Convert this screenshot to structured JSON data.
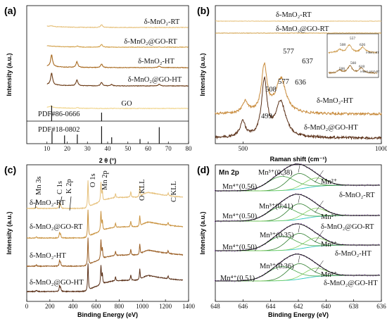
{
  "chart_data": [
    {
      "panel": "(a)",
      "type": "line",
      "xlabel": "2 θ (°)",
      "ylabel": "Intensity (a.u.)",
      "xlim": [
        0,
        80
      ],
      "xticks": [
        "10",
        "20",
        "30",
        "40",
        "50",
        "60",
        "70",
        "80"
      ],
      "series": [
        {
          "name": "δ-MnO₂-RT",
          "color": "#e6c07a",
          "peaks": [
            [
              37,
              4
            ],
            [
              12.3,
              1
            ]
          ]
        },
        {
          "name": "δ-MnO₂@GO-RT",
          "color": "#d3a24d",
          "peaks": [
            [
              37,
              4
            ],
            [
              25,
              1.5
            ]
          ]
        },
        {
          "name": "δ-MnO₂-HT",
          "color": "#a8691e",
          "peaks": [
            [
              12.3,
              17
            ],
            [
              24.8,
              8
            ],
            [
              37,
              5
            ],
            [
              65.5,
              2.5
            ]
          ]
        },
        {
          "name": "δ-MnO₂@GO-HT",
          "color": "#6b3a14",
          "peaks": [
            [
              12.3,
              17
            ],
            [
              24.8,
              8
            ],
            [
              37,
              5
            ],
            [
              42,
              2
            ],
            [
              65.5,
              2.5
            ]
          ]
        },
        {
          "name": "GO",
          "color": "#f0d48a",
          "peaks": [
            [
              12,
              2
            ],
            [
              25,
              1
            ]
          ]
        }
      ],
      "reference_patterns": [
        {
          "name": "PDF#86-0666",
          "lines": [
            [
              12.3,
              1.0
            ],
            [
              37.0,
              0.55
            ]
          ]
        },
        {
          "name": "PDF#18-0802",
          "lines": [
            [
              12.5,
              0.7
            ],
            [
              18.7,
              0.45
            ],
            [
              25.0,
              0.5
            ],
            [
              37.0,
              0.95
            ],
            [
              42.0,
              0.35
            ],
            [
              56.0,
              0.25
            ],
            [
              65.5,
              0.9
            ]
          ]
        }
      ]
    },
    {
      "panel": "(b)",
      "type": "line",
      "xlabel": "Raman shift (cm⁻¹)",
      "ylabel": "Intensity (a.u.)",
      "xlim": [
        400,
        1000
      ],
      "xticks": [
        "500",
        "1000"
      ],
      "series": [
        {
          "name": "δ-MnO₂-RT",
          "color": "#e6c07a",
          "peaks": []
        },
        {
          "name": "δ-MnO₂@GO-RT",
          "color": "#d3a24d",
          "peaks": []
        },
        {
          "name": "δ-MnO₂-HT",
          "color": "#c88a3a",
          "peaks": [
            [
              508,
              5
            ],
            [
              577,
              20
            ],
            [
              637,
              15
            ]
          ]
        },
        {
          "name": "δ-MnO₂@GO-HT",
          "color": "#5a3018",
          "peaks": [
            [
              499,
              6
            ],
            [
              577,
              22
            ],
            [
              636,
              14
            ]
          ]
        }
      ],
      "peak_labels": [
        "508",
        "577",
        "637",
        "577",
        "636",
        "499"
      ],
      "inset": {
        "series": [
          {
            "name": "δ-MnO₂-RT",
            "peak_labels": [
              "557",
              "508",
              "626"
            ]
          },
          {
            "name": "δ-MnO₂@GO-RT",
            "peak_labels": [
              "560",
              "506",
              "618"
            ]
          }
        ]
      }
    },
    {
      "panel": "(c)",
      "type": "line",
      "xlabel": "Binding Energy (eV)",
      "ylabel": "Intensity (a.u.)",
      "xlim": [
        0,
        1400
      ],
      "xticks": [
        "0",
        "200",
        "400",
        "600",
        "800",
        "1000",
        "1200",
        "1400"
      ],
      "series": [
        {
          "name": "δ-MnO₂-RT",
          "color": "#e6c07a"
        },
        {
          "name": "δ-MnO₂@GO-RT",
          "color": "#c9923e"
        },
        {
          "name": "δ-MnO₂-HT",
          "color": "#9a5e24"
        },
        {
          "name": "δ-MnO₂@GO-HT",
          "color": "#5a3018"
        }
      ],
      "peaks": [
        {
          "label": "Mn 3s",
          "x": 84
        },
        {
          "label": "C 1s",
          "x": 284
        },
        {
          "label": "K 2p",
          "x": 293
        },
        {
          "label": "O 1s",
          "x": 530
        },
        {
          "label": "Mn 2p",
          "x": 642
        },
        {
          "label": "O KLL",
          "x": 978
        },
        {
          "label": "C KLL",
          "x": 1223
        }
      ]
    },
    {
      "panel": "(d)",
      "title": "Mn 2p",
      "type": "line",
      "xlabel": "Binding Energy (eV)",
      "ylabel": "Intensity (a.u.)",
      "xlim": [
        648,
        636
      ],
      "xticks": [
        "648",
        "646",
        "644",
        "642",
        "640",
        "638",
        "636"
      ],
      "series": [
        {
          "name": "δ-MnO₂-RT",
          "mn4_label": "Mn⁴⁺(0.56)",
          "mn3_label": "Mn³⁺(0.38)",
          "mn2_label": "Mn²⁺"
        },
        {
          "name": "δ-MnO₂@GO-RT",
          "mn4_label": "Mn⁴⁺(0.50)",
          "mn3_label": "Mn³⁺(0.41)",
          "mn2_label": "Mn²⁺"
        },
        {
          "name": "δ-MnO₂-HT",
          "mn4_label": "Mn⁴⁺(0.50)",
          "mn3_label": "Mn³⁺(0.35)",
          "mn2_label": "Mn²⁺"
        },
        {
          "name": "δ-MnO₂@GO-HT",
          "mn4_label": "Mn⁴⁺(0.51)",
          "mn3_label": "Mn³⁺(0.36)",
          "mn2_label": "Mn²⁺"
        }
      ],
      "component_positions": {
        "mn4": 643.2,
        "mn3": 642.0,
        "mn2": 640.8
      }
    }
  ]
}
